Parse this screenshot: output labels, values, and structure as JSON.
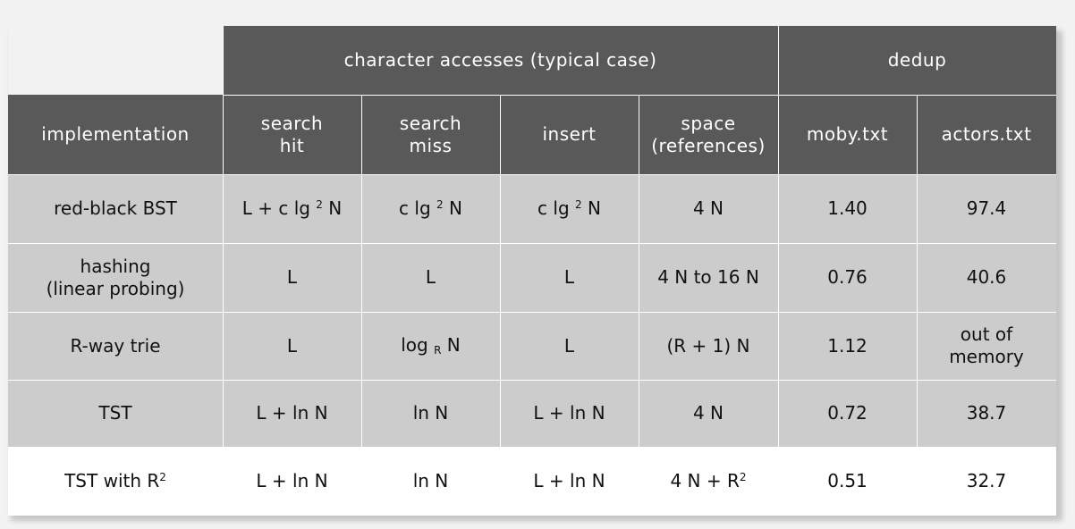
{
  "group_headers": {
    "character_accesses": "character accesses (typical case)",
    "dedup": "dedup"
  },
  "column_headers": {
    "implementation": "implementation",
    "search_hit": [
      "search",
      "hit"
    ],
    "search_miss": [
      "search",
      "miss"
    ],
    "insert": "insert",
    "space": [
      "space",
      "(references)"
    ],
    "moby": "moby.txt",
    "actors": "actors.txt"
  },
  "rows": [
    {
      "implementation": [
        "red-black BST"
      ],
      "search_hit": {
        "pre": "L + c lg ",
        "sup": "2",
        "post": " N"
      },
      "search_miss": {
        "pre": "c lg ",
        "sup": "2",
        "post": " N"
      },
      "insert": {
        "pre": "c lg ",
        "sup": "2",
        "post": " N"
      },
      "space": {
        "pre": "4 N",
        "sup": "",
        "post": ""
      },
      "moby": "1.40",
      "actors": [
        "97.4"
      ]
    },
    {
      "implementation": [
        "hashing",
        "(linear probing)"
      ],
      "search_hit": {
        "pre": "L",
        "sup": "",
        "post": ""
      },
      "search_miss": {
        "pre": "L",
        "sup": "",
        "post": ""
      },
      "insert": {
        "pre": "L",
        "sup": "",
        "post": ""
      },
      "space": {
        "pre": "4 N to 16 N",
        "sup": "",
        "post": ""
      },
      "moby": "0.76",
      "actors": [
        "40.6"
      ]
    },
    {
      "implementation": [
        "R-way trie"
      ],
      "search_hit": {
        "pre": "L",
        "sup": "",
        "post": ""
      },
      "search_miss": {
        "pre": "log ",
        "sub": "R",
        "post": " N"
      },
      "insert": {
        "pre": "L",
        "sup": "",
        "post": ""
      },
      "space": {
        "pre": "(R + 1) N",
        "sup": "",
        "post": ""
      },
      "moby": "1.12",
      "actors": [
        "out of",
        "memory"
      ]
    },
    {
      "implementation": [
        "TST"
      ],
      "search_hit": {
        "pre": "L + ln N",
        "sup": "",
        "post": ""
      },
      "search_miss": {
        "pre": "ln N",
        "sup": "",
        "post": ""
      },
      "insert": {
        "pre": "L + ln N",
        "sup": "",
        "post": ""
      },
      "space": {
        "pre": "4 N",
        "sup": "",
        "post": ""
      },
      "moby": "0.72",
      "actors": [
        "38.7"
      ]
    },
    {
      "implementation": [
        "TST with R",
        "2"
      ],
      "search_hit": {
        "pre": "L + ln N",
        "sup": "",
        "post": ""
      },
      "search_miss": {
        "pre": "ln N",
        "sup": "",
        "post": ""
      },
      "insert": {
        "pre": "L + ln N",
        "sup": "",
        "post": ""
      },
      "space": {
        "pre": "4 N + R",
        "sup": "2",
        "post": ""
      },
      "moby": "0.51",
      "actors": [
        "32.7"
      ]
    }
  ]
}
